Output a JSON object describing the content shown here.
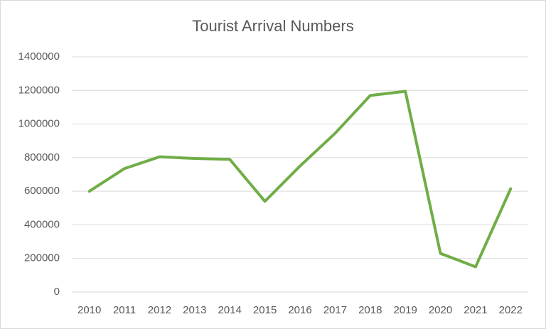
{
  "chart_data": {
    "type": "line",
    "title": "Tourist Arrival Numbers",
    "categories": [
      "2010",
      "2011",
      "2012",
      "2013",
      "2014",
      "2015",
      "2016",
      "2017",
      "2018",
      "2019",
      "2020",
      "2021",
      "2022"
    ],
    "values": [
      600000,
      735000,
      805000,
      795000,
      790000,
      540000,
      750000,
      945000,
      1170000,
      1195000,
      230000,
      150000,
      615000
    ],
    "color": "#70ad47",
    "ylim": [
      0,
      1400000
    ],
    "yticks": [
      0,
      200000,
      400000,
      600000,
      800000,
      1000000,
      1200000,
      1400000
    ],
    "grid": true
  }
}
